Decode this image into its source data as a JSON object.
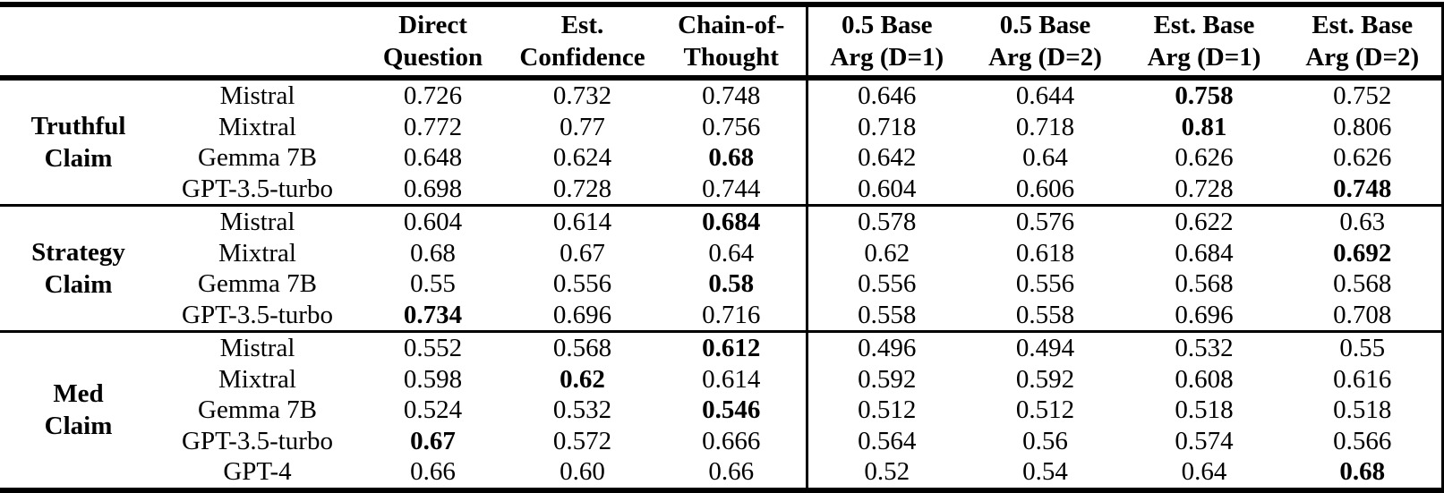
{
  "colors": {
    "text": "#000000",
    "background": "#ffffff",
    "rule": "#000000"
  },
  "table": {
    "column_headers": [
      "Direct\nQuestion",
      "Est.\nConfidence",
      "Chain-of-\nThought",
      "0.5 Base\nArg (D=1)",
      "0.5 Base\nArg (D=2)",
      "Est. Base\nArg (D=1)",
      "Est. Base\nArg (D=2)"
    ],
    "groups": [
      {
        "label": "Truthful\nClaim",
        "rows": [
          {
            "model": "Mistral",
            "values": [
              "0.726",
              "0.732",
              "0.748",
              "0.646",
              "0.644",
              "0.758",
              "0.752"
            ],
            "bold": [
              5
            ]
          },
          {
            "model": "Mixtral",
            "values": [
              "0.772",
              "0.77",
              "0.756",
              "0.718",
              "0.718",
              "0.81",
              "0.806"
            ],
            "bold": [
              5
            ]
          },
          {
            "model": "Gemma 7B",
            "values": [
              "0.648",
              "0.624",
              "0.68",
              "0.642",
              "0.64",
              "0.626",
              "0.626"
            ],
            "bold": [
              2
            ]
          },
          {
            "model": "GPT-3.5-turbo",
            "values": [
              "0.698",
              "0.728",
              "0.744",
              "0.604",
              "0.606",
              "0.728",
              "0.748"
            ],
            "bold": [
              6
            ]
          }
        ]
      },
      {
        "label": "Strategy\nClaim",
        "rows": [
          {
            "model": "Mistral",
            "values": [
              "0.604",
              "0.614",
              "0.684",
              "0.578",
              "0.576",
              "0.622",
              "0.63"
            ],
            "bold": [
              2
            ]
          },
          {
            "model": "Mixtral",
            "values": [
              "0.68",
              "0.67",
              "0.64",
              "0.62",
              "0.618",
              "0.684",
              "0.692"
            ],
            "bold": [
              6
            ]
          },
          {
            "model": "Gemma 7B",
            "values": [
              "0.55",
              "0.556",
              "0.58",
              "0.556",
              "0.556",
              "0.568",
              "0.568"
            ],
            "bold": [
              2
            ]
          },
          {
            "model": "GPT-3.5-turbo",
            "values": [
              "0.734",
              "0.696",
              "0.716",
              "0.558",
              "0.558",
              "0.696",
              "0.708"
            ],
            "bold": [
              0
            ]
          }
        ]
      },
      {
        "label": "Med\nClaim",
        "rows": [
          {
            "model": "Mistral",
            "values": [
              "0.552",
              "0.568",
              "0.612",
              "0.496",
              "0.494",
              "0.532",
              "0.55"
            ],
            "bold": [
              2
            ]
          },
          {
            "model": "Mixtral",
            "values": [
              "0.598",
              "0.62",
              "0.614",
              "0.592",
              "0.592",
              "0.608",
              "0.616"
            ],
            "bold": [
              1
            ]
          },
          {
            "model": "Gemma 7B",
            "values": [
              "0.524",
              "0.532",
              "0.546",
              "0.512",
              "0.512",
              "0.518",
              "0.518"
            ],
            "bold": [
              2
            ]
          },
          {
            "model": "GPT-3.5-turbo",
            "values": [
              "0.67",
              "0.572",
              "0.666",
              "0.564",
              "0.56",
              "0.574",
              "0.566"
            ],
            "bold": [
              0
            ]
          },
          {
            "model": "GPT-4",
            "values": [
              "0.66",
              "0.60",
              "0.66",
              "0.52",
              "0.54",
              "0.64",
              "0.68"
            ],
            "bold": [
              6
            ]
          }
        ]
      }
    ]
  }
}
